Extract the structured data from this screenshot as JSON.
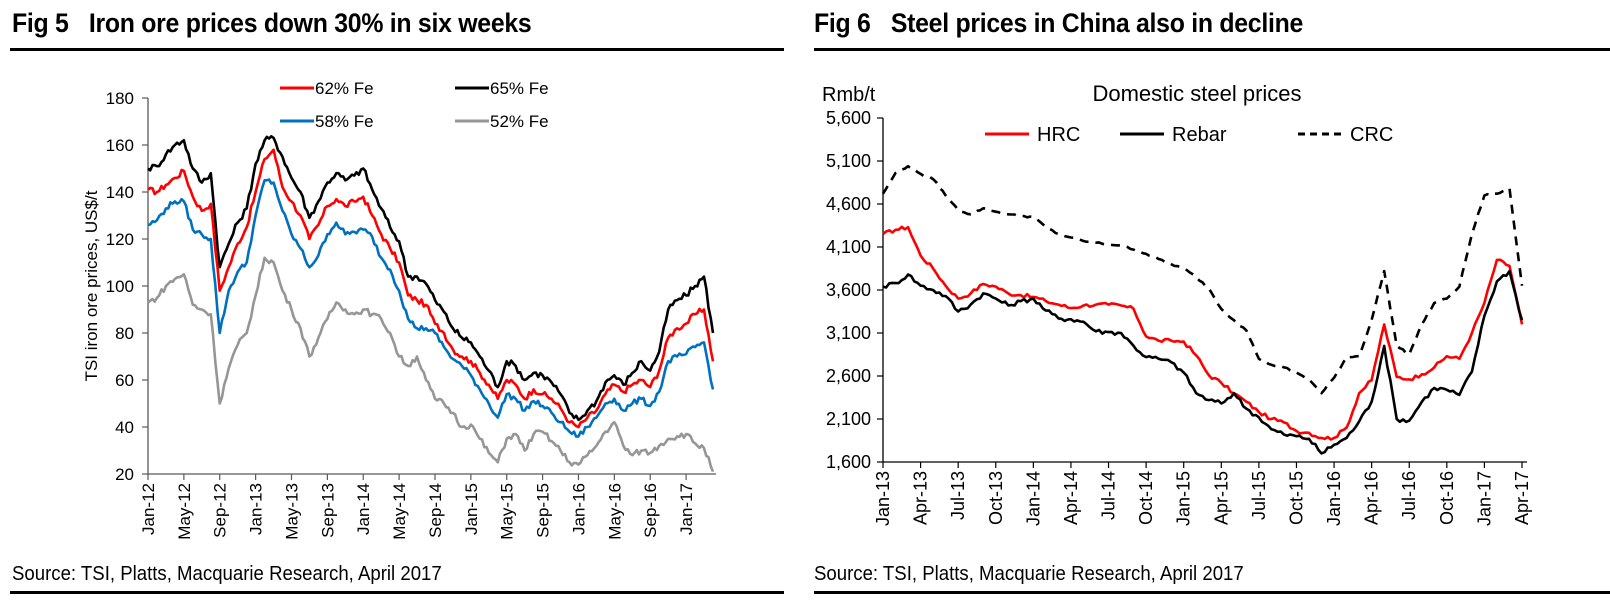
{
  "page": {
    "left_panel": {
      "fig_number": "Fig 5",
      "fig_title": "Iron ore prices down 30% in six weeks",
      "source": "Source: TSI, Platts, Macquarie Research, April 2017"
    },
    "right_panel": {
      "fig_number": "Fig 6",
      "fig_title": "Steel prices in China also in decline",
      "source": "Source: TSI, Platts, Macquarie Research, April 2017"
    }
  },
  "chart_data": [
    {
      "type": "line",
      "title": "Iron ore prices down 30% in six weeks",
      "xlabel": "",
      "ylabel": "TSI iron ore prices, US$/t",
      "ylim": [
        20,
        180
      ],
      "yticks": [
        20,
        40,
        60,
        80,
        100,
        120,
        140,
        160,
        180
      ],
      "ytick_labels": [
        "20",
        "40",
        "60",
        "80",
        "100",
        "120",
        "140",
        "160",
        "180"
      ],
      "xlim": [
        "2012-01",
        "2017-04"
      ],
      "xtick_labels": [
        "Jan-12",
        "May-12",
        "Sep-12",
        "Jan-13",
        "May-13",
        "Sep-13",
        "Jan-14",
        "May-14",
        "Sep-14",
        "Jan-15",
        "May-15",
        "Sep-15",
        "Jan-16",
        "May-16",
        "Sep-16",
        "Jan-17"
      ],
      "grid": false,
      "legend": {
        "position": "top",
        "columns": 2
      },
      "x": [
        "2012-01",
        "2012-02",
        "2012-03",
        "2012-04",
        "2012-05",
        "2012-06",
        "2012-07",
        "2012-08",
        "2012-09",
        "2012-10",
        "2012-11",
        "2012-12",
        "2013-01",
        "2013-02",
        "2013-03",
        "2013-04",
        "2013-05",
        "2013-06",
        "2013-07",
        "2013-08",
        "2013-09",
        "2013-10",
        "2013-11",
        "2013-12",
        "2014-01",
        "2014-02",
        "2014-03",
        "2014-04",
        "2014-05",
        "2014-06",
        "2014-07",
        "2014-08",
        "2014-09",
        "2014-10",
        "2014-11",
        "2014-12",
        "2015-01",
        "2015-02",
        "2015-03",
        "2015-04",
        "2015-05",
        "2015-06",
        "2015-07",
        "2015-08",
        "2015-09",
        "2015-10",
        "2015-11",
        "2015-12",
        "2016-01",
        "2016-02",
        "2016-03",
        "2016-04",
        "2016-05",
        "2016-06",
        "2016-07",
        "2016-08",
        "2016-09",
        "2016-10",
        "2016-11",
        "2016-12",
        "2017-01",
        "2017-02",
        "2017-03",
        "2017-04"
      ],
      "series": [
        {
          "name": "62% Fe",
          "color": "#ff0000",
          "dash": false,
          "values": [
            141,
            140,
            143,
            146,
            149,
            138,
            132,
            135,
            98,
            108,
            118,
            125,
            140,
            154,
            158,
            142,
            136,
            130,
            120,
            126,
            134,
            137,
            134,
            136,
            138,
            130,
            122,
            116,
            110,
            96,
            94,
            92,
            84,
            80,
            73,
            70,
            68,
            63,
            58,
            52,
            60,
            58,
            52,
            56,
            54,
            52,
            48,
            42,
            40,
            44,
            47,
            54,
            58,
            55,
            58,
            60,
            57,
            64,
            78,
            82,
            84,
            88,
            90,
            68
          ]
        },
        {
          "name": "65% Fe",
          "color": "#000000",
          "dash": false,
          "values": [
            150,
            151,
            156,
            160,
            162,
            150,
            144,
            148,
            108,
            118,
            127,
            133,
            152,
            162,
            163,
            155,
            146,
            140,
            129,
            136,
            144,
            148,
            145,
            147,
            150,
            141,
            133,
            125,
            119,
            104,
            104,
            101,
            94,
            89,
            82,
            78,
            76,
            70,
            64,
            57,
            68,
            66,
            60,
            63,
            62,
            59,
            54,
            46,
            43,
            47,
            51,
            59,
            62,
            58,
            63,
            68,
            64,
            72,
            90,
            94,
            96,
            100,
            104,
            80
          ]
        },
        {
          "name": "58% Fe",
          "color": "#0070c0",
          "dash": false,
          "values": [
            126,
            128,
            133,
            136,
            136,
            124,
            122,
            120,
            80,
            98,
            106,
            110,
            130,
            145,
            144,
            132,
            122,
            116,
            108,
            113,
            122,
            127,
            122,
            123,
            124,
            121,
            112,
            107,
            98,
            86,
            82,
            82,
            80,
            74,
            69,
            66,
            62,
            56,
            50,
            44,
            54,
            52,
            47,
            51,
            49,
            46,
            42,
            38,
            36,
            40,
            44,
            50,
            52,
            47,
            50,
            52,
            49,
            55,
            68,
            70,
            71,
            74,
            76,
            56
          ]
        },
        {
          "name": "52% Fe",
          "color": "#969696",
          "dash": false,
          "values": [
            93,
            95,
            100,
            103,
            105,
            92,
            90,
            88,
            50,
            65,
            75,
            80,
            96,
            112,
            110,
            98,
            90,
            82,
            70,
            78,
            86,
            93,
            90,
            88,
            90,
            88,
            86,
            80,
            70,
            66,
            70,
            60,
            52,
            50,
            46,
            40,
            41,
            35,
            29,
            25,
            35,
            37,
            30,
            37,
            38,
            34,
            30,
            25,
            24,
            28,
            32,
            38,
            42,
            32,
            28,
            30,
            29,
            32,
            35,
            36,
            37,
            33,
            31,
            21
          ]
        }
      ]
    },
    {
      "type": "line",
      "title": "Domestic steel prices",
      "xlabel": "",
      "ylabel": "Rmb/t",
      "ylim": [
        1600,
        5600
      ],
      "yticks": [
        1600,
        2100,
        2600,
        3100,
        3600,
        4100,
        4600,
        5100,
        5600
      ],
      "ytick_labels": [
        "1,600",
        "2,100",
        "2,600",
        "3,100",
        "3,600",
        "4,100",
        "4,600",
        "5,100",
        "5,600"
      ],
      "xlim": [
        "2013-01",
        "2017-04"
      ],
      "xtick_labels": [
        "Jan-13",
        "Apr-13",
        "Jul-13",
        "Oct-13",
        "Jan-14",
        "Apr-14",
        "Jul-14",
        "Oct-14",
        "Jan-15",
        "Apr-15",
        "Jul-15",
        "Oct-15",
        "Jan-16",
        "Apr-16",
        "Jul-16",
        "Oct-16",
        "Jan-17",
        "Apr-17"
      ],
      "grid": false,
      "legend": {
        "position": "top",
        "columns": 3
      },
      "x": [
        "2013-01",
        "2013-02",
        "2013-03",
        "2013-04",
        "2013-05",
        "2013-06",
        "2013-07",
        "2013-08",
        "2013-09",
        "2013-10",
        "2013-11",
        "2013-12",
        "2014-01",
        "2014-02",
        "2014-03",
        "2014-04",
        "2014-05",
        "2014-06",
        "2014-07",
        "2014-08",
        "2014-09",
        "2014-10",
        "2014-11",
        "2014-12",
        "2015-01",
        "2015-02",
        "2015-03",
        "2015-04",
        "2015-05",
        "2015-06",
        "2015-07",
        "2015-08",
        "2015-09",
        "2015-10",
        "2015-11",
        "2015-12",
        "2016-01",
        "2016-02",
        "2016-03",
        "2016-04",
        "2016-05",
        "2016-06",
        "2016-07",
        "2016-08",
        "2016-09",
        "2016-10",
        "2016-11",
        "2016-12",
        "2017-01",
        "2017-02",
        "2017-03",
        "2017-04"
      ],
      "series": [
        {
          "name": "HRC",
          "color": "#ff0000",
          "dash": false,
          "values": [
            4250,
            4300,
            4330,
            4000,
            3850,
            3650,
            3500,
            3560,
            3670,
            3640,
            3560,
            3540,
            3520,
            3470,
            3430,
            3390,
            3420,
            3430,
            3430,
            3420,
            3380,
            3060,
            3010,
            3010,
            3000,
            2840,
            2610,
            2520,
            2400,
            2300,
            2180,
            2100,
            2060,
            1960,
            1940,
            1880,
            1880,
            2000,
            2400,
            2550,
            3200,
            2590,
            2560,
            2620,
            2700,
            2830,
            2800,
            3100,
            3450,
            3950,
            3880,
            3200
          ]
        },
        {
          "name": "Rebar",
          "color": "#000000",
          "dash": false,
          "values": [
            3640,
            3680,
            3780,
            3650,
            3600,
            3530,
            3350,
            3430,
            3560,
            3500,
            3420,
            3470,
            3500,
            3360,
            3270,
            3260,
            3230,
            3120,
            3110,
            3100,
            2950,
            2820,
            2800,
            2760,
            2640,
            2400,
            2320,
            2280,
            2400,
            2220,
            2120,
            1980,
            1920,
            1900,
            1870,
            1700,
            1800,
            1880,
            2070,
            2300,
            2950,
            2100,
            2080,
            2300,
            2460,
            2440,
            2380,
            2650,
            3300,
            3700,
            3820,
            3250
          ]
        },
        {
          "name": "CRC",
          "color": "#000000",
          "dash": true,
          "values": [
            4720,
            4960,
            5040,
            4950,
            4890,
            4700,
            4530,
            4480,
            4550,
            4510,
            4480,
            4460,
            4450,
            4330,
            4250,
            4210,
            4170,
            4150,
            4130,
            4120,
            4070,
            4020,
            3960,
            3900,
            3850,
            3750,
            3620,
            3380,
            3250,
            3130,
            2800,
            2730,
            2700,
            2640,
            2560,
            2400,
            2580,
            2820,
            2830,
            3250,
            3820,
            2950,
            2850,
            3200,
            3450,
            3500,
            3640,
            4250,
            4700,
            4720,
            4780,
            3650
          ]
        }
      ]
    }
  ]
}
